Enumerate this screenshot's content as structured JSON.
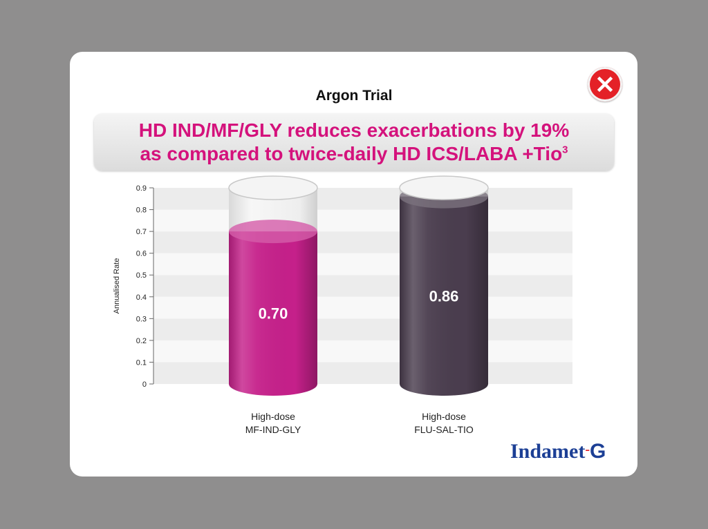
{
  "header": {
    "trial_title": "Argon Trial",
    "headline_line1": "HD IND/MF/GLY reduces exacerbations by 19%",
    "headline_line2": "as compared to twice-daily HD ICS/LABA +Tio",
    "headline_superscript": "3"
  },
  "close_button": {
    "icon": "close-icon",
    "color": "#e42127"
  },
  "logo": {
    "name": "Indamet",
    "dash": "-",
    "suffix": "G"
  },
  "chart_data": {
    "type": "bar",
    "title": "",
    "ylabel": "Annualised Rate",
    "xlabel": "",
    "ylim": [
      0,
      0.9
    ],
    "yticks": [
      "0",
      "0.1",
      "0.2",
      "0.3",
      "0.4",
      "0.5",
      "0.6",
      "0.7",
      "0.8",
      "0.9"
    ],
    "grid": true,
    "categories": [
      {
        "line1": "High-dose",
        "line2": "MF-IND-GLY"
      },
      {
        "line1": "High-dose",
        "line2": "FLU-SAL-TIO"
      }
    ],
    "values": [
      0.7,
      0.86
    ],
    "value_labels": [
      "0.70",
      "0.86"
    ],
    "colors": [
      "#c5208a",
      "#4a3d4e"
    ]
  }
}
